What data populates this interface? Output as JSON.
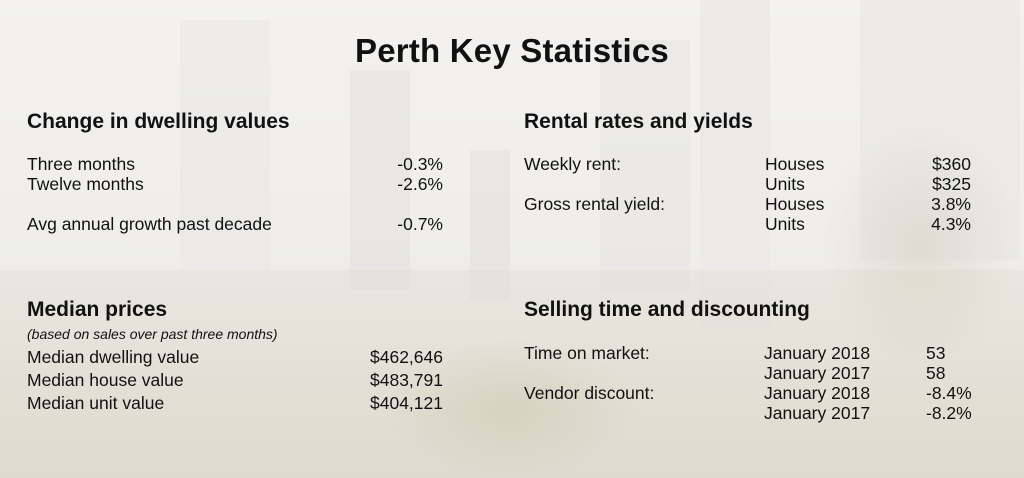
{
  "title": "Perth Key Statistics",
  "dwelling": {
    "heading": "Change in dwelling values",
    "rows": [
      {
        "label": "Three months",
        "value": "-0.3%"
      },
      {
        "label": "Twelve months",
        "value": "-2.6%"
      },
      {
        "label": "Avg annual growth past decade",
        "value": "-0.7%"
      }
    ]
  },
  "rental": {
    "heading": "Rental rates and yields",
    "rows": [
      {
        "label": "Weekly rent:",
        "type": "Houses",
        "value": "$360"
      },
      {
        "label": "",
        "type": "Units",
        "value": "$325"
      },
      {
        "label": "Gross rental yield:",
        "type": "Houses",
        "value": "3.8%"
      },
      {
        "label": "",
        "type": "Units",
        "value": "4.3%"
      }
    ]
  },
  "median": {
    "heading": "Median prices",
    "note": "(based on sales over past three months)",
    "rows": [
      {
        "label": "Median dwelling value",
        "value": "$462,646"
      },
      {
        "label": "Median house value",
        "value": "$483,791"
      },
      {
        "label": "Median unit value",
        "value": "$404,121"
      }
    ]
  },
  "selling": {
    "heading": "Selling time and discounting",
    "rows": [
      {
        "label": "Time on market:",
        "period": "January 2018",
        "value": "53"
      },
      {
        "label": "",
        "period": "January 2017",
        "value": "58"
      },
      {
        "label": "Vendor discount:",
        "period": "January 2018",
        "value": "-8.4%"
      },
      {
        "label": "",
        "period": "January 2017",
        "value": "-8.2%"
      }
    ]
  }
}
